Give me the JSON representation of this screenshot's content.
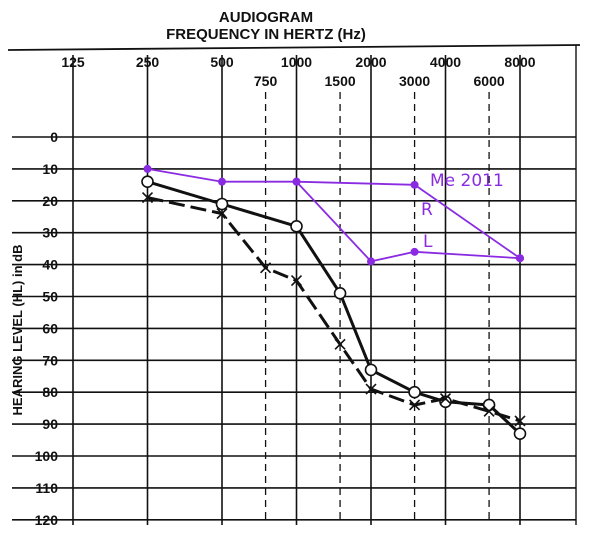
{
  "chart_data": {
    "type": "line",
    "title": "AUDIOGRAM",
    "subtitle": "FREQUENCY IN HERTZ (Hz)",
    "ylabel": "HEARING LEVEL (HL) in dB",
    "x_scale": "log",
    "y_inverted": true,
    "ylim": [
      0,
      120
    ],
    "y_ticks": [
      0,
      10,
      20,
      30,
      40,
      50,
      60,
      70,
      80,
      90,
      100,
      110,
      120
    ],
    "x_ticks_major": [
      125,
      250,
      500,
      1000,
      2000,
      4000,
      8000
    ],
    "x_ticks_minor": [
      750,
      1500,
      3000,
      6000
    ],
    "x_tick_labels_major": [
      "125",
      "250",
      "500",
      "1000",
      "2000",
      "4000",
      "8000"
    ],
    "x_tick_labels_minor": [
      "750",
      "1500",
      "3000",
      "6000"
    ],
    "y_tick_labels": [
      "0",
      "10",
      "20",
      "30",
      "40",
      "50",
      "60",
      "70",
      "80",
      "90",
      "100",
      "110",
      "120"
    ],
    "grid": true,
    "series": [
      {
        "marker": "circle",
        "color": "#111111",
        "points": [
          [
            250,
            14
          ],
          [
            500,
            21
          ],
          [
            1000,
            28
          ],
          [
            1500,
            49
          ],
          [
            2000,
            73
          ],
          [
            3000,
            80
          ],
          [
            4000,
            83
          ],
          [
            6000,
            84
          ],
          [
            8000,
            93
          ]
        ]
      },
      {
        "marker": "x",
        "color": "#111111",
        "points": [
          [
            250,
            19
          ],
          [
            500,
            24
          ],
          [
            750,
            41
          ],
          [
            1000,
            45
          ],
          [
            1500,
            65
          ],
          [
            2000,
            79
          ],
          [
            3000,
            84
          ],
          [
            4000,
            82
          ],
          [
            6000,
            86
          ],
          [
            8000,
            89
          ]
        ]
      },
      {
        "name": "R",
        "marker": "dot",
        "color": "#8a2be2",
        "points": [
          [
            250,
            10
          ],
          [
            500,
            14
          ],
          [
            1000,
            14
          ],
          [
            3000,
            15
          ],
          [
            8000,
            38
          ]
        ]
      },
      {
        "name": "L",
        "marker": "dot",
        "color": "#8a2be2",
        "points": [
          [
            1000,
            14
          ],
          [
            2000,
            39
          ],
          [
            3000,
            36
          ],
          [
            8000,
            38
          ]
        ]
      }
    ],
    "annotations": [
      {
        "text": "Me 2011",
        "color": "#8a2be2"
      },
      {
        "text": "R",
        "color": "#8a2be2"
      },
      {
        "text": "L",
        "color": "#8a2be2"
      }
    ]
  }
}
